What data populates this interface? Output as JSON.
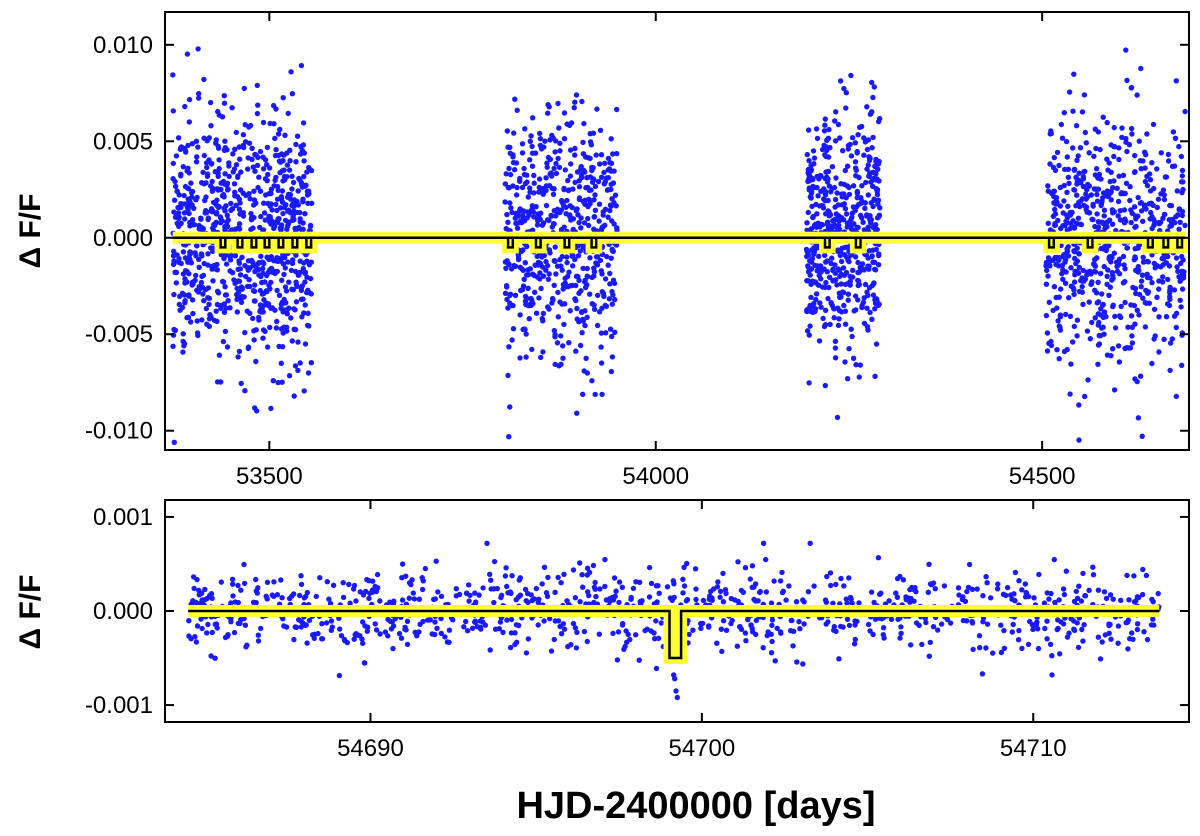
{
  "colors": {
    "points": "#1a1aff",
    "model_highlight": "#ffff33",
    "model_line": "#000000",
    "axes": "#000000"
  },
  "chart_data": [
    {
      "type": "scatter",
      "title": "",
      "ylabel": "Δ F/F",
      "xlabel": "",
      "xlim": [
        53365,
        54690
      ],
      "ylim": [
        -0.011,
        0.0117
      ],
      "x_ticks": [
        53500,
        54000,
        54500
      ],
      "x_tick_labels": [
        "53500",
        "54000",
        "54500"
      ],
      "y_ticks": [
        -0.01,
        -0.005,
        0.0,
        0.005,
        0.01
      ],
      "y_tick_labels": [
        "-0.010",
        "-0.005",
        "0.000",
        "0.005",
        "0.010"
      ],
      "grid": false,
      "observing_seasons": [
        [
          53375,
          53555
        ],
        [
          53805,
          53950
        ],
        [
          54195,
          54290
        ],
        [
          54505,
          54685
        ]
      ],
      "scatter_sigma": 0.0031,
      "scatter_range": [
        -0.0106,
        0.01
      ],
      "model": {
        "baseline": 0.0,
        "transit_depth": -0.0005,
        "transit_centers": [
          53440,
          53462,
          53480,
          53497,
          53515,
          53533,
          53551,
          53812,
          53848,
          53885,
          53920,
          54222,
          54262,
          54512,
          54562,
          54640,
          54660,
          54678
        ]
      }
    },
    {
      "type": "scatter",
      "title": "",
      "ylabel": "Δ F/F",
      "xlabel": "HJD-2400000 [days]",
      "xlim": [
        54683.8,
        54714.7
      ],
      "ylim": [
        -0.00118,
        0.00118
      ],
      "x_ticks": [
        54690,
        54700,
        54710
      ],
      "x_tick_labels": [
        "54690",
        "54700",
        "54710"
      ],
      "y_ticks": [
        -0.001,
        0.0,
        0.001
      ],
      "y_tick_labels": [
        "-0.001",
        "0.000",
        "0.001"
      ],
      "grid": false,
      "data_range": [
        54684.5,
        54713.8
      ],
      "scatter_sigma": 0.00022,
      "scatter_range": [
        -0.00092,
        0.00072
      ],
      "model": {
        "baseline": 0.0,
        "transit_depth": -0.0005,
        "transit_centers": [
          54699.2
        ],
        "transit_width": 0.35
      }
    }
  ]
}
